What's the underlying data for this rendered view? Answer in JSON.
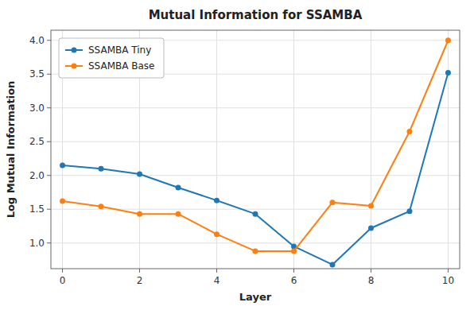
{
  "chart_data": {
    "type": "line",
    "title": "Mutual Information for SSAMBA",
    "x_label": "Layer",
    "y_label": "Log Mutual Information",
    "x": [
      0,
      1,
      2,
      3,
      4,
      5,
      6,
      7,
      8,
      9,
      10
    ],
    "series": [
      {
        "name": "SSAMBA Tiny",
        "color": "#1f77b4",
        "marker": "o",
        "values": [
          2.15,
          2.1,
          2.02,
          1.82,
          1.63,
          1.43,
          0.95,
          0.68,
          1.22,
          1.47,
          3.52
        ]
      },
      {
        "name": "SSAMBA Base",
        "color": "#ff7f0e",
        "marker": "o",
        "values": [
          1.62,
          1.54,
          1.43,
          1.43,
          1.13,
          0.88,
          0.88,
          1.6,
          1.55,
          2.65,
          4.0
        ]
      }
    ],
    "xlim": [
      -0.3,
      10.3
    ],
    "ylim": [
      0.62,
      4.15
    ],
    "xticks": [
      0,
      2,
      4,
      6,
      8,
      10
    ],
    "yticks": [
      {
        "value": 1.0,
        "label": "1.0"
      },
      1.5,
      {
        "value": 2.0,
        "label": "2.0"
      },
      2.5,
      {
        "value": 3.0,
        "label": "3.0"
      },
      3.5,
      {
        "value": 4.0,
        "label": "4.0"
      }
    ],
    "grid": true,
    "legend": "upper left"
  }
}
